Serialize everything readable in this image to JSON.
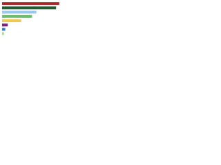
{
  "chart_data": {
    "type": "barh",
    "categories": [
      null,
      null,
      null,
      null,
      null,
      null,
      null,
      null
    ],
    "values": [
      90,
      85,
      54,
      47,
      30,
      9,
      5,
      3
    ],
    "colors": [
      "#a52a2a",
      "#1f5b2e",
      "#9cc8ee",
      "#6bbf6b",
      "#f2c94c",
      "#7a1f7a",
      "#2f7fd8",
      "#a8e08a"
    ],
    "xlim": [
      0,
      100
    ]
  }
}
